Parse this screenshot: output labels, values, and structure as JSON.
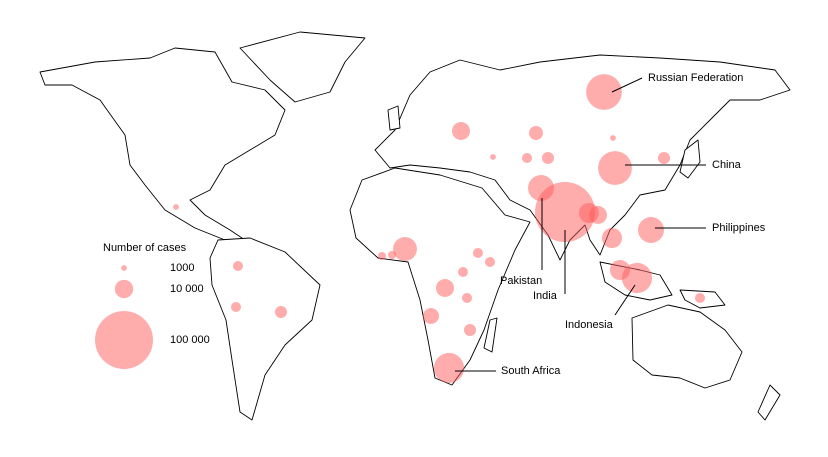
{
  "legend": {
    "title": "Number of cases",
    "items": [
      {
        "value": 1000,
        "label": "1000"
      },
      {
        "value": 10000,
        "label": "10 000"
      },
      {
        "value": 100000,
        "label": "100 000"
      }
    ]
  },
  "bubbles": [
    {
      "label": "Russian Federation",
      "value": 38000
    },
    {
      "label": "China",
      "value": 34000
    },
    {
      "label": "Philippines",
      "value": 20000
    },
    {
      "label": "Pakistan",
      "value": 20000
    },
    {
      "label": "India",
      "value": 107000
    },
    {
      "label": "Indonesia",
      "value": 27000
    },
    {
      "label": "South Africa",
      "value": 27000
    },
    {
      "value": 9600
    },
    {
      "value": 5800
    },
    {
      "value": 1000
    },
    {
      "value": 17000
    },
    {
      "value": 9600
    },
    {
      "value": 7600
    },
    {
      "value": 4300
    },
    {
      "value": 3000
    },
    {
      "value": 3000
    },
    {
      "value": 3000
    },
    {
      "value": 3000
    },
    {
      "value": 1900
    },
    {
      "value": 1900
    },
    {
      "value": 3000
    },
    {
      "value": 4300
    },
    {
      "value": 3000
    },
    {
      "value": 1000
    },
    {
      "value": 12000
    },
    {
      "value": 9600
    },
    {
      "value": 12000
    },
    {
      "value": 12000
    },
    {
      "value": 3000
    },
    {
      "value": 4300
    },
    {
      "value": 3000
    },
    {
      "value": 1000
    },
    {
      "value": 4300
    }
  ]
}
